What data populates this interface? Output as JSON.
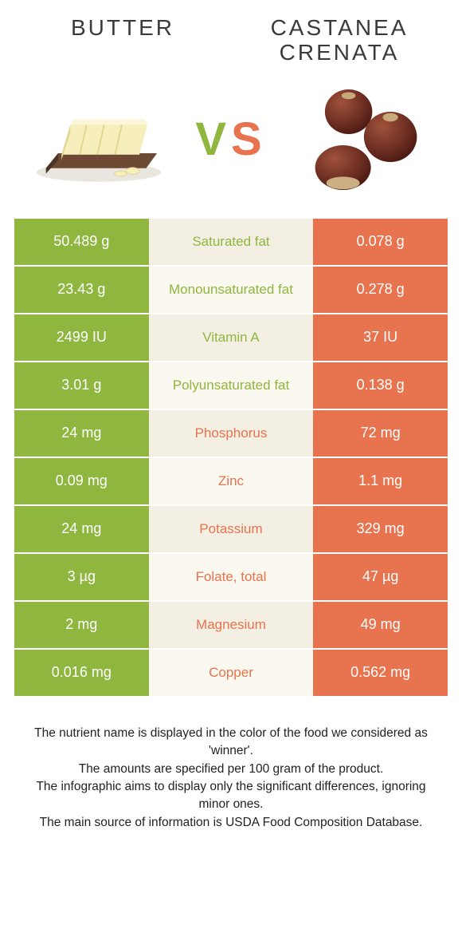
{
  "colors": {
    "left_bg": "#8fb63e",
    "left_fg": "#ffffff",
    "right_bg": "#e8734f",
    "right_fg": "#ffffff",
    "mid_bg_odd": "#f4efe3",
    "mid_bg_even": "#fbf8ef",
    "mid_left_text": "#8fb63e",
    "mid_right_text": "#e8734f",
    "title_text": "#3a3a3a",
    "vs_left": "#8fb63e",
    "vs_right": "#e8734f"
  },
  "header": {
    "left_title": "Butter",
    "right_title": "Castanea crenata",
    "vs_v": "V",
    "vs_s": "S"
  },
  "rows": [
    {
      "left": "50.489 g",
      "mid": "Saturated fat",
      "right": "0.078 g",
      "winner": "left"
    },
    {
      "left": "23.43 g",
      "mid": "Monounsaturated fat",
      "right": "0.278 g",
      "winner": "left"
    },
    {
      "left": "2499 IU",
      "mid": "Vitamin A",
      "right": "37 IU",
      "winner": "left"
    },
    {
      "left": "3.01 g",
      "mid": "Polyunsaturated fat",
      "right": "0.138 g",
      "winner": "left"
    },
    {
      "left": "24 mg",
      "mid": "Phosphorus",
      "right": "72 mg",
      "winner": "right"
    },
    {
      "left": "0.09 mg",
      "mid": "Zinc",
      "right": "1.1 mg",
      "winner": "right"
    },
    {
      "left": "24 mg",
      "mid": "Potassium",
      "right": "329 mg",
      "winner": "right"
    },
    {
      "left": "3 µg",
      "mid": "Folate, total",
      "right": "47 µg",
      "winner": "right"
    },
    {
      "left": "2 mg",
      "mid": "Magnesium",
      "right": "49 mg",
      "winner": "right"
    },
    {
      "left": "0.016 mg",
      "mid": "Copper",
      "right": "0.562 mg",
      "winner": "right"
    }
  ],
  "footer": {
    "line1": "The nutrient name is displayed in the color of the food we considered as 'winner'.",
    "line2": "The amounts are specified per 100 gram of the product.",
    "line3": "The infographic aims to display only the significant differences, ignoring minor ones.",
    "line4": "The main source of information is USDA Food Composition Database."
  }
}
